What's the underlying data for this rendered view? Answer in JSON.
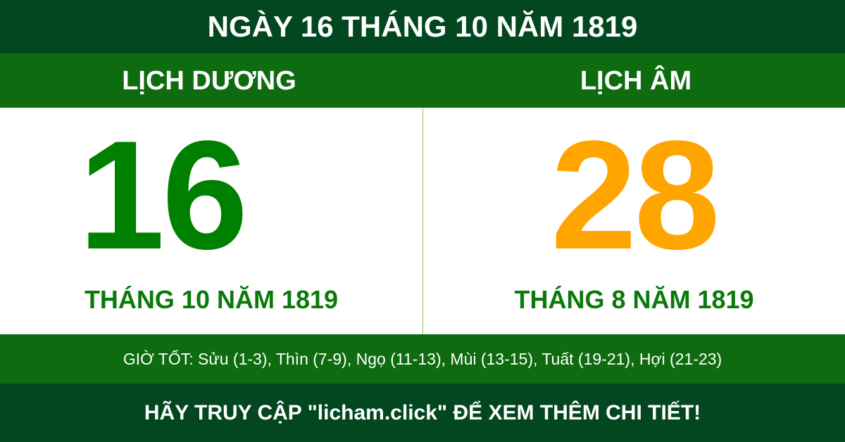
{
  "header": {
    "title": "NGÀY 16 THÁNG 10 NĂM 1819"
  },
  "solar": {
    "label": "LỊCH DƯƠNG",
    "day": "16",
    "month_year": "THÁNG 10 NĂM 1819"
  },
  "lunar": {
    "label": "LỊCH ÂM",
    "day": "28",
    "month_year": "THÁNG 8 NĂM 1819"
  },
  "good_hours": "GIỜ TỐT: Sửu (1-3), Thìn (7-9), Ngọ (11-13), Mùi (13-15), Tuất (19-21), Hợi (21-23)",
  "footer": {
    "cta": "HÃY TRUY CẬP \"licham.click\" ĐỂ XEM THÊM CHI TIẾT!"
  },
  "colors": {
    "dark_green": "#034720",
    "green_band": "#0f6b10",
    "solar_day": "#008000",
    "lunar_day": "#ffa500"
  }
}
